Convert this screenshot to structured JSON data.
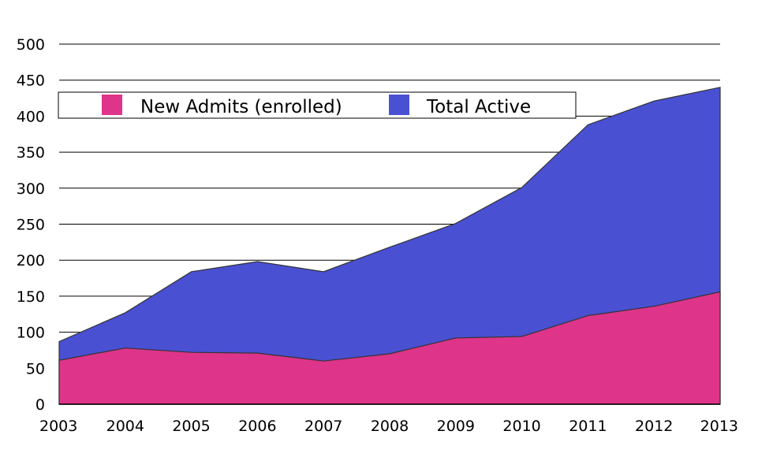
{
  "chart_data": {
    "type": "area",
    "stacking": "overlay",
    "title": "",
    "xlabel": "",
    "ylabel": "",
    "categories": [
      "2003",
      "2004",
      "2005",
      "2006",
      "2007",
      "2008",
      "2009",
      "2010",
      "2011",
      "2012",
      "2013"
    ],
    "ylim": [
      0,
      500
    ],
    "yticks": [
      0,
      50,
      100,
      150,
      200,
      250,
      300,
      350,
      400,
      450,
      500
    ],
    "grid": "horizontal",
    "legend_position": "top-left",
    "series": [
      {
        "name": "Total Active",
        "color": "#4a50d2",
        "values": [
          87,
          127,
          184,
          198,
          184,
          218,
          251,
          301,
          388,
          421,
          440
        ]
      },
      {
        "name": "New Admits (enrolled)",
        "color": "#de348a",
        "values": [
          61,
          78,
          72,
          71,
          60,
          70,
          92,
          94,
          123,
          136,
          156
        ]
      }
    ],
    "legend": {
      "items": [
        {
          "label": "New Admits (enrolled)",
          "color": "#de348a"
        },
        {
          "label": "Total Active",
          "color": "#4a50d2"
        }
      ]
    }
  }
}
